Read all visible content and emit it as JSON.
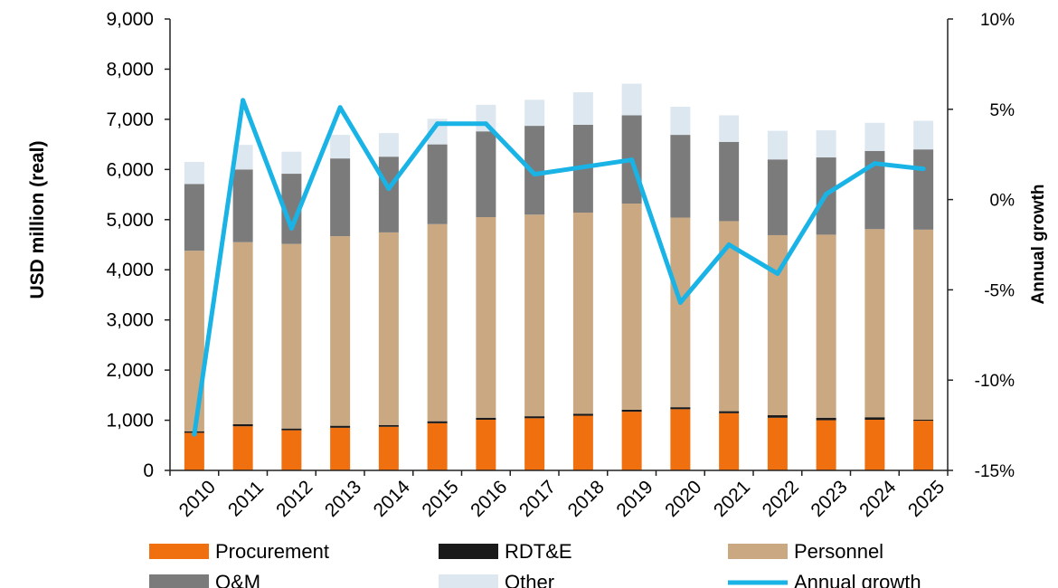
{
  "chart_data": {
    "type": "bar",
    "stacked": true,
    "categories": [
      "2010",
      "2011",
      "2012",
      "2013",
      "2014",
      "2015",
      "2016",
      "2017",
      "2018",
      "2019",
      "2020",
      "2021",
      "2022",
      "2023",
      "2024",
      "2025"
    ],
    "y_left": {
      "label": "USD million (real)",
      "ylim": [
        0,
        9000
      ],
      "ticks": [
        0,
        1000,
        2000,
        3000,
        4000,
        5000,
        6000,
        7000,
        8000,
        9000
      ],
      "tick_labels": [
        "0",
        "1,000",
        "2,000",
        "3,000",
        "4,000",
        "5,000",
        "6,000",
        "7,000",
        "8,000",
        "9,000"
      ]
    },
    "y_right": {
      "label": "Annual growth",
      "ylim": [
        -15,
        10
      ],
      "ticks": [
        -15,
        -10,
        -5,
        0,
        5,
        10
      ],
      "tick_labels": [
        "-15%",
        "-10%",
        "-5%",
        "0%",
        "5%",
        "10%"
      ]
    },
    "series": [
      {
        "name": "Procurement",
        "color": "#f07010",
        "axis": "left",
        "values": [
          750,
          880,
          800,
          850,
          870,
          940,
          1010,
          1040,
          1090,
          1170,
          1220,
          1140,
          1050,
          1000,
          1010,
          990
        ]
      },
      {
        "name": "RDT&E",
        "color": "#1a1a1a",
        "axis": "left",
        "values": [
          30,
          40,
          35,
          40,
          35,
          40,
          40,
          40,
          40,
          40,
          40,
          40,
          50,
          50,
          50,
          20
        ]
      },
      {
        "name": "Personnel",
        "color": "#c9a882",
        "axis": "left",
        "values": [
          3600,
          3630,
          3680,
          3780,
          3840,
          3930,
          4000,
          4020,
          4010,
          4110,
          3780,
          3790,
          3590,
          3650,
          3750,
          3790
        ]
      },
      {
        "name": "O&M",
        "color": "#7b7b7b",
        "axis": "left",
        "values": [
          1330,
          1450,
          1400,
          1550,
          1510,
          1590,
          1710,
          1770,
          1750,
          1760,
          1650,
          1580,
          1510,
          1540,
          1560,
          1600
        ]
      },
      {
        "name": "Other",
        "color": "#dde7f0",
        "axis": "left",
        "values": [
          440,
          490,
          440,
          470,
          470,
          510,
          530,
          520,
          650,
          630,
          560,
          530,
          570,
          540,
          560,
          570
        ]
      },
      {
        "name": "Annual growth",
        "color": "#19b3e6",
        "type": "line",
        "axis": "right",
        "values": [
          -13,
          5.5,
          -1.6,
          5.1,
          0.6,
          4.2,
          4.2,
          1.4,
          1.8,
          2.2,
          -5.7,
          -2.5,
          -4.1,
          0.3,
          2.0,
          1.7
        ]
      }
    ],
    "legend": [
      "Procurement",
      "RDT&E",
      "Personnel",
      "O&M",
      "Other",
      "Annual growth"
    ],
    "legend_position": "bottom",
    "grid": false
  }
}
